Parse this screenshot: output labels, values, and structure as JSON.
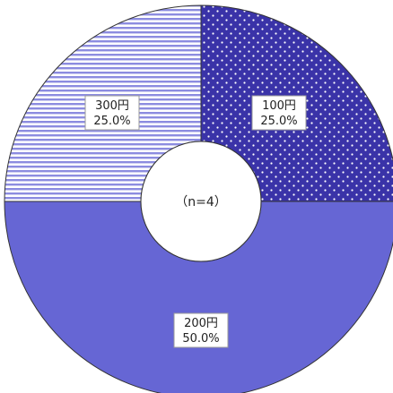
{
  "chart_data": {
    "type": "pie",
    "variant": "donut",
    "center_label": "（n=4）",
    "slices": [
      {
        "category": "100円",
        "percent_label": "25.0%",
        "value": 25.0,
        "fill": "dots",
        "color": "#3a33a8",
        "dot_color": "#ffffff"
      },
      {
        "category": "200円",
        "percent_label": "50.0%",
        "value": 50.0,
        "fill": "solid",
        "color": "#6666d4"
      },
      {
        "category": "300円",
        "percent_label": "25.0%",
        "value": 25.0,
        "fill": "horizontal-stripes",
        "color": "#8c8ce0",
        "stripe_background": "#ffffff"
      }
    ],
    "start_angle_deg": 0,
    "direction": "clockwise",
    "outline_color": "#333333"
  }
}
